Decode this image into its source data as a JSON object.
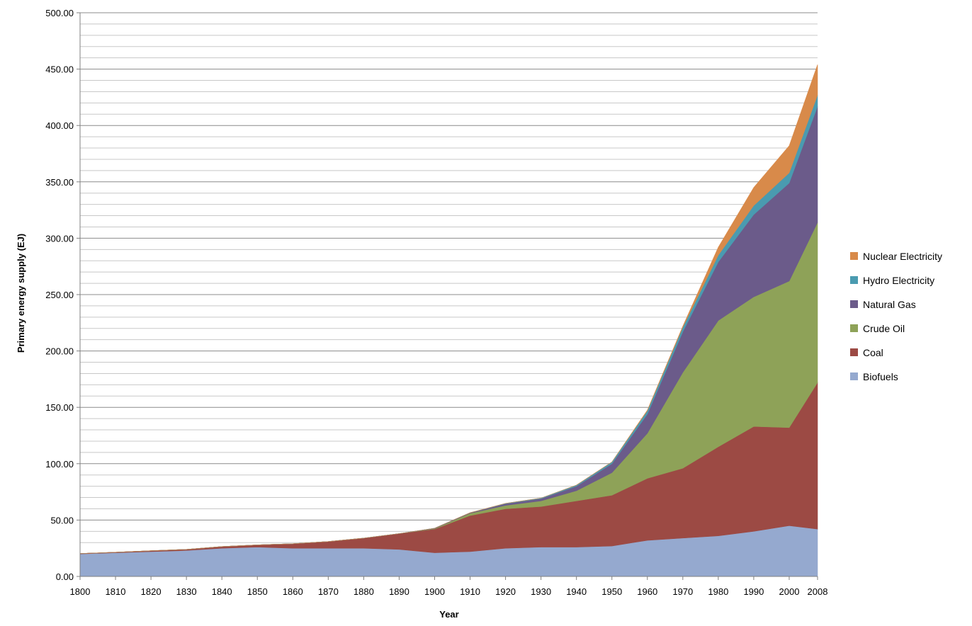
{
  "chart_data": {
    "type": "area",
    "stacked": true,
    "xlabel": "Year",
    "ylabel": "Primary energy supply (EJ)",
    "x": [
      1800,
      1810,
      1820,
      1830,
      1840,
      1850,
      1860,
      1870,
      1880,
      1890,
      1900,
      1910,
      1920,
      1930,
      1940,
      1950,
      1960,
      1970,
      1980,
      1990,
      2000,
      2008
    ],
    "x_tick_labels": [
      "1800",
      "1810",
      "1820",
      "1830",
      "1840",
      "1850",
      "1860",
      "1870",
      "1880",
      "1890",
      "1900",
      "1910",
      "1920",
      "1930",
      "1940",
      "1950",
      "1960",
      "1970",
      "1980",
      "1990",
      "2000",
      "2008"
    ],
    "xlim": [
      1800,
      2008
    ],
    "ylim": [
      0,
      500
    ],
    "y_ticks": [
      0,
      50,
      100,
      150,
      200,
      250,
      300,
      350,
      400,
      450,
      500
    ],
    "y_tick_labels": [
      "0.00",
      "50.00",
      "100.00",
      "150.00",
      "200.00",
      "250.00",
      "300.00",
      "350.00",
      "400.00",
      "450.00",
      "500.00"
    ],
    "y_minor_step": 10,
    "grid": true,
    "legend_position": "right",
    "series": [
      {
        "name": "Biofuels",
        "color": "#95a9cf",
        "values": [
          20,
          21,
          22,
          23,
          25,
          26,
          25,
          25,
          25,
          24,
          21,
          22,
          25,
          26,
          26,
          27,
          32,
          34,
          36,
          40,
          45,
          42
        ]
      },
      {
        "name": "Coal",
        "color": "#9c4a44",
        "values": [
          0.3,
          0.5,
          0.8,
          1,
          1.5,
          2,
          4,
          6,
          9,
          14,
          21,
          32,
          35,
          36,
          41,
          45,
          55,
          62,
          79,
          93,
          87,
          130
        ]
      },
      {
        "name": "Crude Oil",
        "color": "#8ea258",
        "values": [
          0,
          0,
          0,
          0,
          0,
          0,
          0,
          0,
          0,
          0,
          0.5,
          2,
          3,
          5,
          9,
          20,
          40,
          85,
          112,
          115,
          130,
          142
        ]
      },
      {
        "name": "Natural Gas",
        "color": "#6b5b8a",
        "values": [
          0,
          0,
          0,
          0,
          0,
          0,
          0,
          0,
          0,
          0,
          0.3,
          0.5,
          1.5,
          2,
          4,
          8,
          17,
          36,
          52,
          73,
          87,
          103
        ]
      },
      {
        "name": "Hydro Electricity",
        "color": "#4a9bb0",
        "values": [
          0,
          0,
          0,
          0,
          0,
          0,
          0,
          0,
          0,
          0,
          0,
          0,
          0.3,
          0.5,
          1,
          1.5,
          3,
          4,
          6,
          8,
          9,
          10
        ]
      },
      {
        "name": "Nuclear Electricity",
        "color": "#d88a4a",
        "values": [
          0,
          0,
          0,
          0,
          0,
          0,
          0,
          0,
          0,
          0,
          0,
          0,
          0,
          0,
          0,
          0,
          0.5,
          1,
          7,
          16,
          24,
          27
        ]
      }
    ]
  }
}
